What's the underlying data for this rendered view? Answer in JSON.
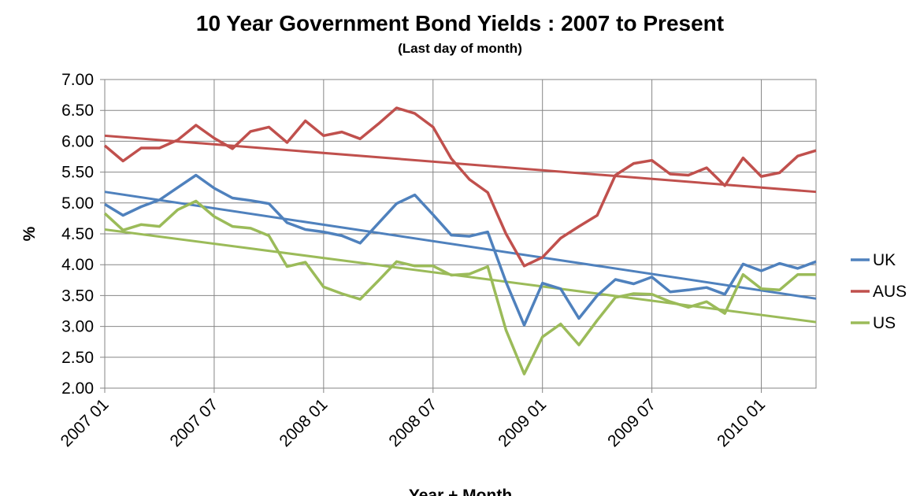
{
  "chart_data": {
    "type": "line",
    "title": "10 Year Government Bond Yields : 2007 to Present",
    "subtitle": "(Last day of month)",
    "xlabel": "Year + Month",
    "ylabel": "%",
    "ylim": [
      2.0,
      7.0
    ],
    "yticks": [
      "7.00",
      "6.50",
      "6.00",
      "5.50",
      "5.00",
      "4.50",
      "4.00",
      "3.50",
      "3.00",
      "2.50",
      "2.00"
    ],
    "ytick_values": [
      7.0,
      6.5,
      6.0,
      5.5,
      5.0,
      4.5,
      4.0,
      3.5,
      3.0,
      2.5,
      2.0
    ],
    "x": [
      "2007 01",
      "2007 02",
      "2007 03",
      "2007 04",
      "2007 05",
      "2007 06",
      "2007 07",
      "2007 08",
      "2007 09",
      "2007 10",
      "2007 11",
      "2007 12",
      "2008 01",
      "2008 02",
      "2008 03",
      "2008 04",
      "2008 05",
      "2008 06",
      "2008 07",
      "2008 08",
      "2008 09",
      "2008 10",
      "2008 11",
      "2008 12",
      "2009 01",
      "2009 02",
      "2009 03",
      "2009 04",
      "2009 05",
      "2009 06",
      "2009 07",
      "2009 08",
      "2009 09",
      "2009 10",
      "2009 11",
      "2009 12",
      "2010 01",
      "2010 02",
      "2010 03",
      "2010 04"
    ],
    "xticks": [
      "2007 01",
      "2007 07",
      "2008 01",
      "2008 07",
      "2009 01",
      "2009 07",
      "2010 01"
    ],
    "grid": true,
    "legend_position": "right",
    "series": [
      {
        "name": "UK",
        "color": "#4f81bd",
        "values": [
          4.98,
          4.8,
          4.94,
          5.05,
          5.25,
          5.45,
          5.24,
          5.08,
          5.04,
          4.99,
          4.68,
          4.57,
          4.53,
          4.47,
          4.35,
          4.67,
          4.99,
          5.13,
          4.81,
          4.48,
          4.46,
          4.53,
          3.72,
          3.02,
          3.7,
          3.61,
          3.13,
          3.5,
          3.76,
          3.69,
          3.8,
          3.56,
          3.59,
          3.63,
          3.52,
          4.01,
          3.9,
          4.02,
          3.94,
          4.05
        ],
        "trend": [
          5.18,
          3.45
        ]
      },
      {
        "name": "AUS",
        "color": "#c0504d",
        "values": [
          5.93,
          5.68,
          5.89,
          5.89,
          6.02,
          6.26,
          6.05,
          5.88,
          6.16,
          6.23,
          5.98,
          6.33,
          6.09,
          6.15,
          6.04,
          6.28,
          6.54,
          6.45,
          6.23,
          5.72,
          5.38,
          5.17,
          4.5,
          3.98,
          4.12,
          4.43,
          4.62,
          4.8,
          5.45,
          5.64,
          5.69,
          5.47,
          5.45,
          5.57,
          5.28,
          5.73,
          5.43,
          5.49,
          5.76,
          5.85
        ],
        "trend": [
          6.09,
          5.18
        ]
      },
      {
        "name": "US",
        "color": "#9bbb59",
        "values": [
          4.83,
          4.56,
          4.65,
          4.62,
          4.89,
          5.03,
          4.78,
          4.62,
          4.59,
          4.47,
          3.97,
          4.04,
          3.64,
          3.53,
          3.44,
          3.74,
          4.05,
          3.98,
          3.98,
          3.83,
          3.85,
          3.97,
          2.94,
          2.23,
          2.83,
          3.04,
          2.7,
          3.1,
          3.47,
          3.53,
          3.52,
          3.4,
          3.31,
          3.4,
          3.21,
          3.84,
          3.61,
          3.59,
          3.84,
          3.84
        ],
        "trend": [
          4.57,
          3.07
        ]
      }
    ]
  }
}
